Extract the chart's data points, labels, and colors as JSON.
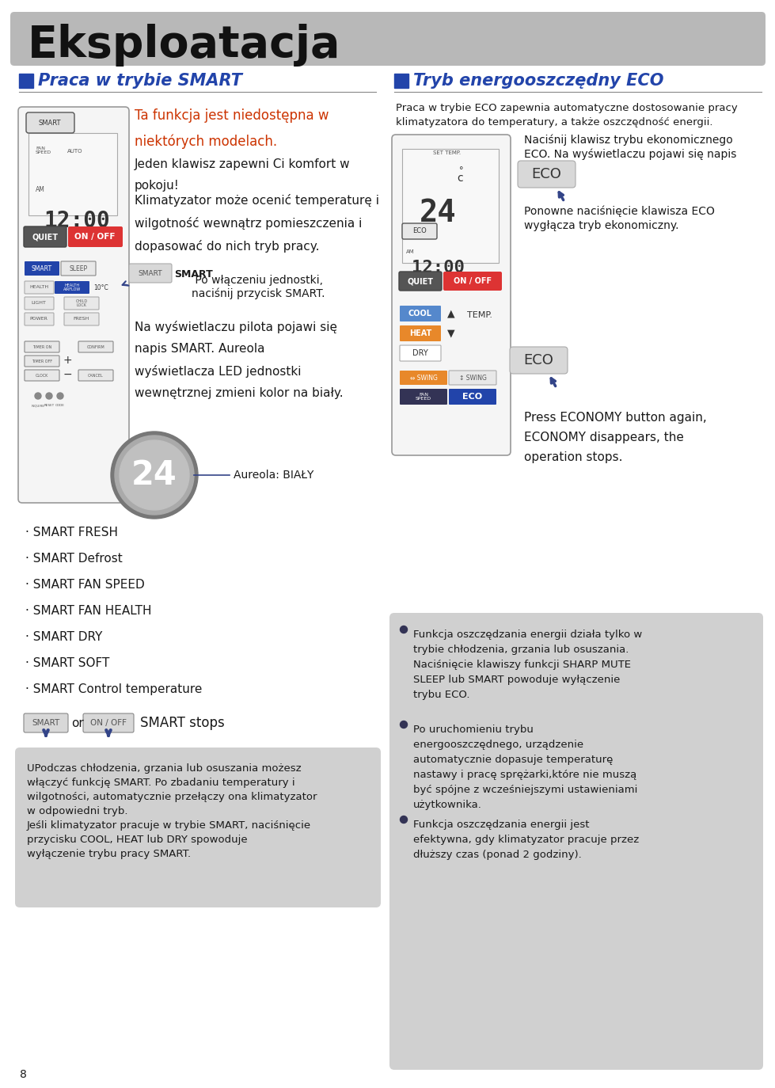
{
  "title": "Eksploatacja",
  "title_bg": "#b8b8b8",
  "page_bg": "#ffffff",
  "section1_title": "Praca w trybie SMART",
  "section2_title": "Tryb energooszczędny ECO",
  "section_color": "#2244aa",
  "text_red": "#cc3300",
  "text_dark": "#1a1a1a",
  "text_gray": "#444444",
  "gray_box_bg": "#cccccc",
  "smart_text1": "Ta funkcja jest niedostępna w\nniektórych modelach.",
  "smart_text2": "Jeden klawisz zapewni Ci komfort w\npokoju!",
  "smart_text3": "Klimatyzator może ocenić temperaturę i\nwilgotność wewnątrz pomieszczenia i\ndopasować do nich tryb pracy.",
  "smart_text4a": "SMART",
  "smart_text4b": " Po włączeniu jednostki,\nnaciśnij przycisk SMART.",
  "smart_text5": "Na wyświetlaczu pilota pojawi się\nnapis SMART. Aureola\nwyświetlacza LED jednostki\nwewnętrznej zmieni kolor na biały.",
  "aureola_label": "Aureola: BIAŁY",
  "eco_text1_line1": "Praca w trybie ECO zapewnia automatyczne dostosowanie pracy",
  "eco_text1_line2": "klimatyzatora do temperatury, a także oszczędność energii.",
  "eco_note1_line1": "Naciśnij klawisz trybu ekonomicznego",
  "eco_note1_line2": "ECO. Na wyświetlaczu pojawi się napis",
  "eco_note1_line3": "ECO.",
  "eco_note2_line1": "Ponowne naciśnięcie klawisza ECO",
  "eco_note2_line2": "wygłącza tryb ekonomiczny.",
  "eco_eng_line1": "Press ECONOMY button again,",
  "eco_eng_line2": "ECONOMY disappears, the",
  "eco_eng_line3": "operation stops.",
  "bullet_items": [
    "· SMART FRESH",
    "· SMART Defrost",
    "· SMART FAN SPEED",
    "· SMART FAN HEALTH",
    "· SMART DRY",
    "· SMART SOFT",
    "· SMART Control temperature"
  ],
  "gray_box1_lines": [
    "UPodczas chłodzenia, grzania lub osuszania możesz",
    "włączyć funkcję SMART. Po zbadaniu temperatury i",
    "wilgotności, automatycznie przełączy ona klimatyzator",
    "w odpowiedni tryb.",
    "Jeśli klimatyzator pracuje w trybie SMART, naciśnięcie",
    "przycisku COOL, HEAT lub DRY spowoduje",
    "wyłączenie trybu pracy SMART."
  ],
  "gray_box2_b1_lines": [
    "Funkcja oszczędzania energii działa tylko w",
    "trybie chłodzenia, grzania lub osuszania.",
    "Naciśnięcie klawiszy funkcji SHARP MUTE",
    "SLEEP lub SMART powoduje wyłączenie",
    "trybu ECO."
  ],
  "gray_box2_b2_lines": [
    "Po uruchomieniu trybu",
    "energooszczędnego, urządzenie",
    "automatycznie dopasuje temperaturę",
    "nastawy i pracę sprężarki,które nie muszą",
    "być spójne z wcześniejszymi ustawieniami",
    "użytkownika."
  ],
  "gray_box2_b3_lines": [
    "Funkcja oszczędzania energii jest",
    "efektywna, gdy klimatyzator pracuje przez",
    "dłuższy czas (ponad 2 godziny)."
  ],
  "page_num": "8"
}
